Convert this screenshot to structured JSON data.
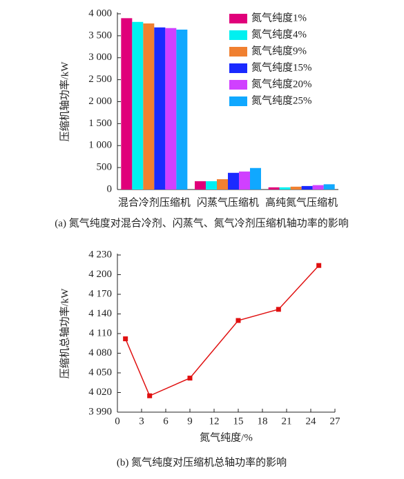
{
  "chart_data": [
    {
      "type": "bar",
      "caption": "(a) 氮气纯度对混合冷剂、闪蒸气、氮气冷剂压缩机轴功率的影响",
      "y_label": "压缩机轴功率/kW",
      "categories": [
        "混合冷剂压缩机",
        "闪蒸气压缩机",
        "高纯氮气压缩机"
      ],
      "series": [
        {
          "name": "氮气纯度1%",
          "color": "#e0007a",
          "values": [
            3900,
            190,
            50
          ]
        },
        {
          "name": "氮气纯度4%",
          "color": "#00f0f0",
          "values": [
            3815,
            190,
            50
          ]
        },
        {
          "name": "氮气纯度9%",
          "color": "#f08030",
          "values": [
            3780,
            235,
            65
          ]
        },
        {
          "name": "氮气纯度15%",
          "color": "#1a2aff",
          "values": [
            3690,
            380,
            80
          ]
        },
        {
          "name": "氮气纯度20%",
          "color": "#d040ff",
          "values": [
            3675,
            410,
            100
          ]
        },
        {
          "name": "氮气纯度25%",
          "color": "#10a8ff",
          "values": [
            3640,
            490,
            120
          ]
        }
      ],
      "ylim": [
        0,
        4000
      ],
      "yticks": [
        0,
        500,
        {
          "value": 1000,
          "label": "1 000"
        },
        {
          "value": 1500,
          "label": "1 500"
        },
        {
          "value": 2000,
          "label": "2 000"
        },
        {
          "value": 2500,
          "label": "2 500"
        },
        {
          "value": 3000,
          "label": "3 000"
        },
        {
          "value": 3500,
          "label": "3 500"
        },
        {
          "value": 4000,
          "label": "4 000"
        }
      ],
      "legend": "upper right"
    },
    {
      "type": "line",
      "caption": "(b) 氮气纯度对压缩机总轴功率的影响",
      "x_label": "氮气纯度/%",
      "y_label": "压缩机总轴功率/kW",
      "x": [
        1,
        4,
        9,
        15,
        20,
        25
      ],
      "series": [
        {
          "color": "#e01010",
          "values": [
            4102,
            4015,
            4042,
            4130,
            4147,
            4214
          ]
        }
      ],
      "xlim": [
        0,
        27
      ],
      "xticks": [
        0,
        3,
        6,
        9,
        12,
        15,
        18,
        21,
        24,
        27
      ],
      "ylim": [
        3990,
        4230
      ],
      "yticks": [
        {
          "value": 3990,
          "label": "3 990"
        },
        {
          "value": 4020,
          "label": "4 020"
        },
        {
          "value": 4050,
          "label": "4 050"
        },
        {
          "value": 4080,
          "label": "4 080"
        },
        {
          "value": 4110,
          "label": "4 110"
        },
        {
          "value": 4140,
          "label": "4 140"
        },
        {
          "value": 4170,
          "label": "4 170"
        },
        {
          "value": 4200,
          "label": "4 200"
        },
        {
          "value": 4230,
          "label": "4 230"
        }
      ]
    }
  ]
}
